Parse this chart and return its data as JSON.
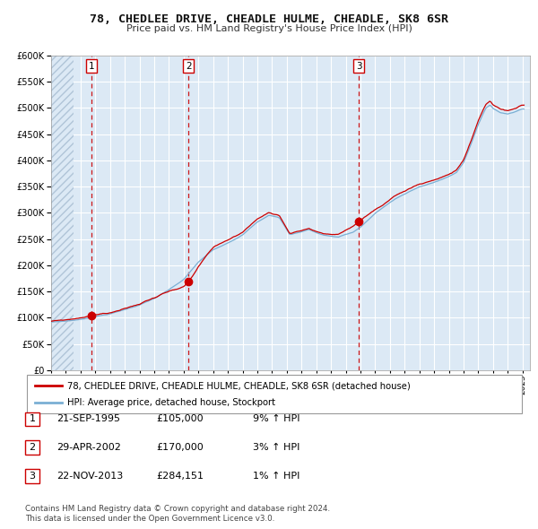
{
  "title": "78, CHEDLEE DRIVE, CHEADLE HULME, CHEADLE, SK8 6SR",
  "subtitle": "Price paid vs. HM Land Registry's House Price Index (HPI)",
  "legend_label_red": "78, CHEDLEE DRIVE, CHEADLE HULME, CHEADLE, SK8 6SR (detached house)",
  "legend_label_blue": "HPI: Average price, detached house, Stockport",
  "footer1": "Contains HM Land Registry data © Crown copyright and database right 2024.",
  "footer2": "This data is licensed under the Open Government Licence v3.0.",
  "transactions": [
    {
      "num": 1,
      "date": "21-SEP-1995",
      "price": 105000,
      "hpi_pct": "9% ↑ HPI",
      "year": 1995.72
    },
    {
      "num": 2,
      "date": "29-APR-2002",
      "price": 170000,
      "hpi_pct": "3% ↑ HPI",
      "year": 2002.32
    },
    {
      "num": 3,
      "date": "22-NOV-2013",
      "price": 284151,
      "hpi_pct": "1% ↑ HPI",
      "year": 2013.89
    }
  ],
  "ylim": [
    0,
    600000
  ],
  "yticks": [
    0,
    50000,
    100000,
    150000,
    200000,
    250000,
    300000,
    350000,
    400000,
    450000,
    500000,
    550000,
    600000
  ],
  "xlim_start": 1993.0,
  "xlim_end": 2025.5,
  "xtick_years": [
    1993,
    1994,
    1995,
    1996,
    1997,
    1998,
    1999,
    2000,
    2001,
    2002,
    2003,
    2004,
    2005,
    2006,
    2007,
    2008,
    2009,
    2010,
    2011,
    2012,
    2013,
    2014,
    2015,
    2016,
    2017,
    2018,
    2019,
    2020,
    2021,
    2022,
    2023,
    2024,
    2025
  ],
  "bg_color": "#dce9f5",
  "grid_color": "#ffffff",
  "red_line_color": "#cc0000",
  "blue_line_color": "#7aafd4",
  "dashed_color": "#cc0000",
  "marker_color": "#cc0000",
  "hatch_end_year": 1994.5
}
